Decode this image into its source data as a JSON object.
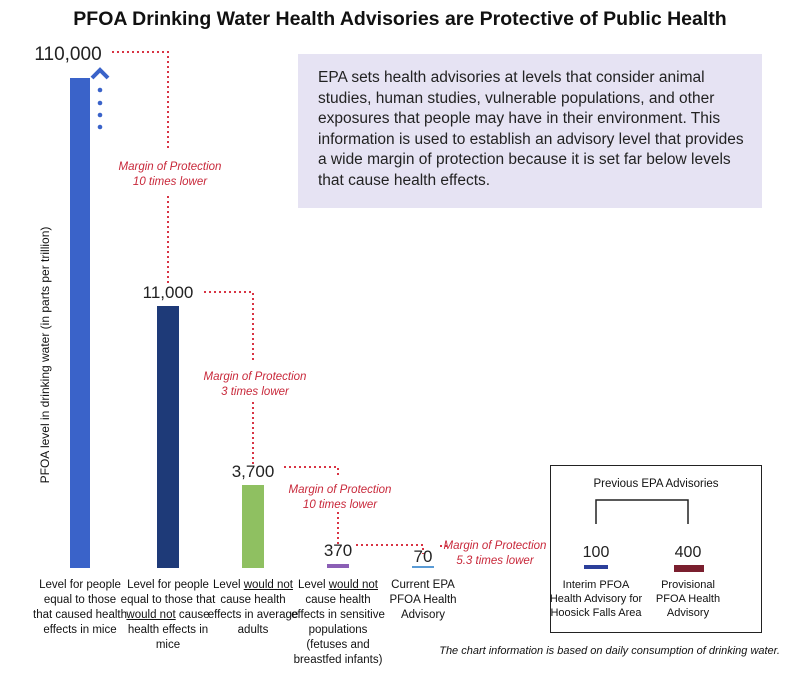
{
  "title": "PFOA Drinking Water Health Advisories are Protective of Public Health",
  "info_text": "EPA sets health advisories at levels that consider animal studies, human studies, vulnerable populations, and other exposures that people may have in their environment. This information is used to establish an advisory level that provides a wide margin of protection because it is set far below levels that cause health effects.",
  "footnote": "The chart information is based on daily consumption of drinking water.",
  "chart_data": {
    "type": "bar",
    "ylabel": "PFOA level in drinking water (in parts per trillion)",
    "bars": [
      {
        "value": 110000,
        "value_label": "110,000",
        "color": "#3a63c9",
        "label_parts": [
          "Level for people",
          "equal to those",
          "that caused health",
          "effects in mice"
        ],
        "underline": []
      },
      {
        "value": 11000,
        "value_label": "11,000",
        "color": "#1e3a78",
        "label_parts": [
          "Level for people",
          "equal  to those that",
          "would not cause",
          "health effects in",
          "mice"
        ],
        "underline": [
          "would not"
        ]
      },
      {
        "value": 3700,
        "value_label": "3,700",
        "color": "#8fc061",
        "label_parts": [
          "Level would not",
          "cause health",
          "effects in average",
          "adults"
        ],
        "underline": [
          "would not"
        ]
      },
      {
        "value": 370,
        "value_label": "370",
        "color": "#8b5fb5",
        "label_parts": [
          "Level would not",
          "cause health",
          "effects in sensitive",
          "populations",
          "(fetuses and",
          "breastfed infants)"
        ],
        "underline": [
          "would not"
        ]
      },
      {
        "value": 70,
        "value_label": "70",
        "color": "#5a9bd5",
        "label_parts": [
          "Current EPA",
          "PFOA Health",
          "Advisory"
        ],
        "underline": []
      }
    ],
    "margins": [
      {
        "text": [
          "Margin of Protection",
          "10 times lower"
        ]
      },
      {
        "text": [
          "Margin of Protection",
          "3 times lower"
        ]
      },
      {
        "text": [
          "Margin of Protection",
          "10 times lower"
        ]
      },
      {
        "text": [
          "Margin of Protection",
          "5.3 times lower"
        ]
      }
    ],
    "legend": {
      "title": "Previous EPA Advisories",
      "items": [
        {
          "value_label": "100",
          "color": "#2b3f9a",
          "label_parts": [
            "Interim PFOA",
            "Health Advisory for",
            "Hoosick Falls Area"
          ]
        },
        {
          "value_label": "400",
          "color": "#7a1f2e",
          "label_parts": [
            "Provisional",
            "PFOA Health",
            "Advisory"
          ]
        }
      ]
    }
  }
}
